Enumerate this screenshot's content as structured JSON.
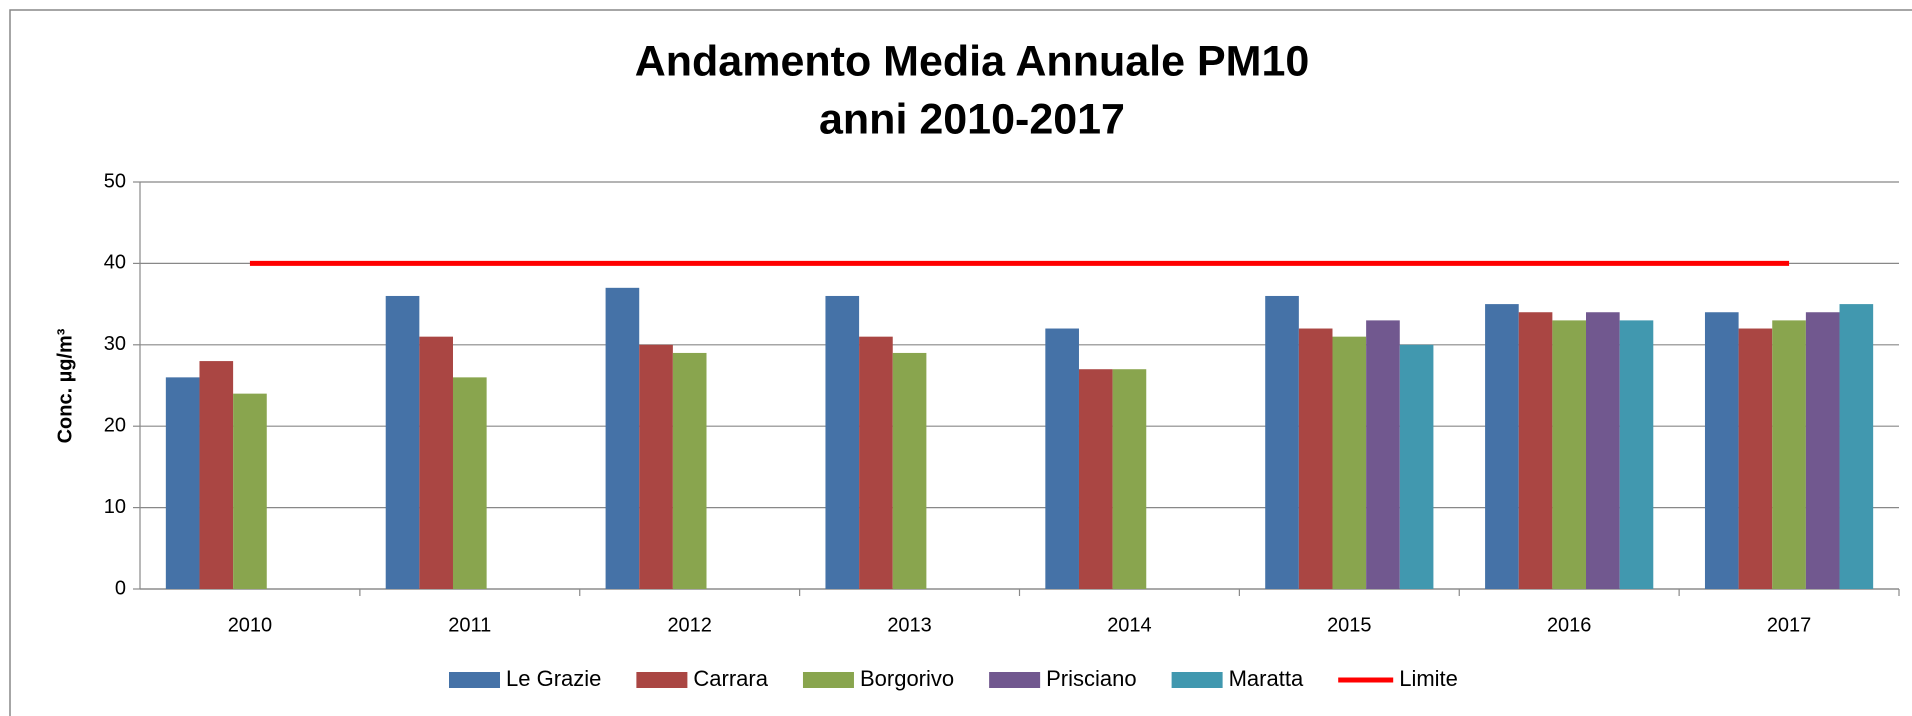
{
  "chart_data": {
    "type": "bar",
    "title": [
      "Andamento Media Annuale PM10",
      "anni 2010-2017"
    ],
    "ylabel": "Conc.  µg/m³",
    "categories": [
      "2010",
      "2011",
      "2012",
      "2013",
      "2014",
      "2015",
      "2016",
      "2017"
    ],
    "series": [
      {
        "name": "Le Grazie",
        "color": "#4572a7",
        "values": [
          26,
          36,
          37,
          36,
          32,
          36,
          35,
          34
        ]
      },
      {
        "name": "Carrara",
        "color": "#aa4643",
        "values": [
          28,
          31,
          30,
          31,
          27,
          32,
          34,
          32
        ]
      },
      {
        "name": "Borgorivo",
        "color": "#89a54e",
        "values": [
          24,
          26,
          29,
          29,
          27,
          31,
          33,
          33
        ]
      },
      {
        "name": "Prisciano",
        "color": "#71588f",
        "values": [
          null,
          null,
          null,
          null,
          null,
          33,
          34,
          34
        ]
      },
      {
        "name": "Maratta",
        "color": "#4198af",
        "values": [
          null,
          null,
          null,
          null,
          null,
          30,
          33,
          35
        ]
      },
      {
        "name": "Limite",
        "color": "#ff0000",
        "type": "line",
        "values": [
          40,
          40,
          40,
          40,
          40,
          40,
          40,
          40
        ]
      }
    ],
    "ylim": [
      0,
      50
    ],
    "yticks": [
      0,
      10,
      20,
      30,
      40,
      50
    ],
    "grid": true,
    "legend": "bottom"
  }
}
